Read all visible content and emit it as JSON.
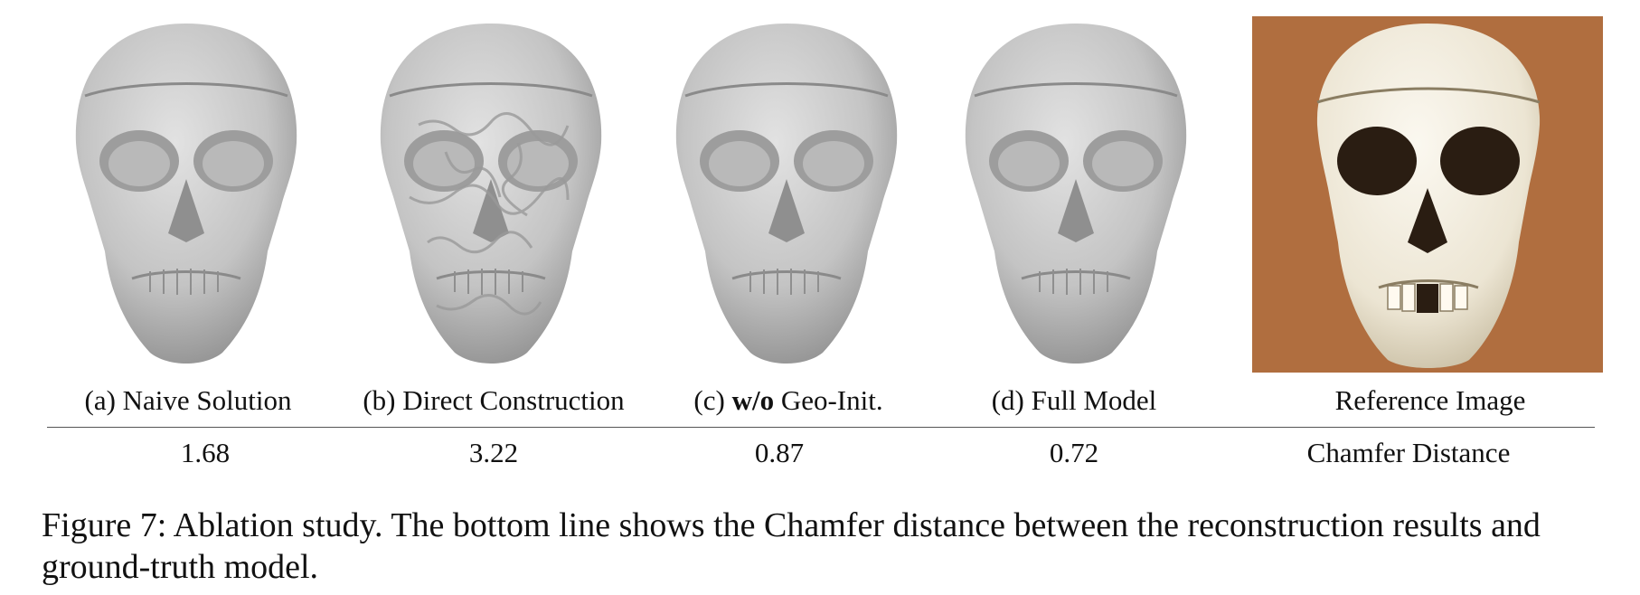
{
  "figure": {
    "panels": [
      {
        "label_prefix": "(a) ",
        "label_bold": "",
        "label_rest": "Naive Solution",
        "value": "1.68",
        "style": "smooth"
      },
      {
        "label_prefix": "(b) ",
        "label_bold": "",
        "label_rest": "Direct Construction",
        "value": "3.22",
        "style": "noisy"
      },
      {
        "label_prefix": "(c) ",
        "label_bold": "w/o",
        "label_rest": " Geo-Init.",
        "value": "0.87",
        "style": "smooth"
      },
      {
        "label_prefix": "(d) ",
        "label_bold": "",
        "label_rest": "Full Model",
        "value": "0.72",
        "style": "smooth"
      }
    ],
    "reference_label": "Reference Image",
    "metric_label": "Chamfer Distance",
    "caption": "Figure 7: Ablation study. The bottom line shows the Chamfer distance between the reconstruction results and ground-truth model.",
    "colors": {
      "mesh": "#c4c4c4",
      "mesh_shadow": "#8e8e8e",
      "reference_bg": "#b06e3f",
      "bone": "#f1ece0"
    }
  }
}
